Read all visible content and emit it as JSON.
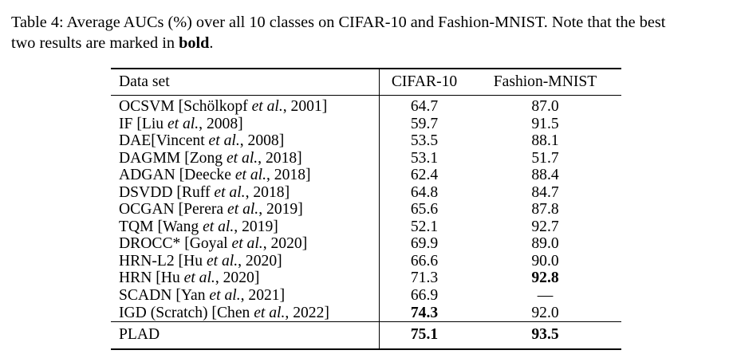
{
  "caption": {
    "line1": "Table 4: Average AUCs (%) over all 10 classes on CIFAR-10 and Fashion-MNIST. Note that the best",
    "line2_pre": "two results are marked in ",
    "line2_bold": "bold",
    "line2_post": "."
  },
  "table": {
    "columns": [
      "Data set",
      "CIFAR-10",
      "Fashion-MNIST"
    ],
    "rows": [
      {
        "method_pre": "OCSVM [Schölkopf ",
        "method_italic": "et al.",
        "method_post": ", 2001]",
        "cifar10": "64.7",
        "fashion_mnist": "87.0",
        "cifar10_bold": false,
        "fashion_mnist_bold": false,
        "is_summary": false
      },
      {
        "method_pre": "IF [Liu ",
        "method_italic": "et al.",
        "method_post": ", 2008]",
        "cifar10": "59.7",
        "fashion_mnist": "91.5",
        "cifar10_bold": false,
        "fashion_mnist_bold": false,
        "is_summary": false
      },
      {
        "method_pre": "DAE[Vincent ",
        "method_italic": "et al.",
        "method_post": ", 2008]",
        "cifar10": "53.5",
        "fashion_mnist": "88.1",
        "cifar10_bold": false,
        "fashion_mnist_bold": false,
        "is_summary": false
      },
      {
        "method_pre": "DAGMM [Zong ",
        "method_italic": "et al.",
        "method_post": ", 2018]",
        "cifar10": "53.1",
        "fashion_mnist": "51.7",
        "cifar10_bold": false,
        "fashion_mnist_bold": false,
        "is_summary": false
      },
      {
        "method_pre": "ADGAN [Deecke ",
        "method_italic": "et al.",
        "method_post": ", 2018]",
        "cifar10": "62.4",
        "fashion_mnist": "88.4",
        "cifar10_bold": false,
        "fashion_mnist_bold": false,
        "is_summary": false
      },
      {
        "method_pre": "DSVDD [Ruff ",
        "method_italic": "et al.",
        "method_post": ", 2018]",
        "cifar10": "64.8",
        "fashion_mnist": "84.7",
        "cifar10_bold": false,
        "fashion_mnist_bold": false,
        "is_summary": false
      },
      {
        "method_pre": "OCGAN [Perera ",
        "method_italic": "et al.",
        "method_post": ", 2019]",
        "cifar10": "65.6",
        "fashion_mnist": "87.8",
        "cifar10_bold": false,
        "fashion_mnist_bold": false,
        "is_summary": false
      },
      {
        "method_pre": "TQM [Wang ",
        "method_italic": "et al.",
        "method_post": ", 2019]",
        "cifar10": "52.1",
        "fashion_mnist": "92.7",
        "cifar10_bold": false,
        "fashion_mnist_bold": false,
        "is_summary": false
      },
      {
        "method_pre": "DROCC* [Goyal ",
        "method_italic": "et al.",
        "method_post": ", 2020]",
        "cifar10": "69.9",
        "fashion_mnist": "89.0",
        "cifar10_bold": false,
        "fashion_mnist_bold": false,
        "is_summary": false
      },
      {
        "method_pre": "HRN-L2 [Hu ",
        "method_italic": "et al.",
        "method_post": ", 2020]",
        "cifar10": "66.6",
        "fashion_mnist": "90.0",
        "cifar10_bold": false,
        "fashion_mnist_bold": false,
        "is_summary": false
      },
      {
        "method_pre": "HRN [Hu ",
        "method_italic": "et al.",
        "method_post": ", 2020]",
        "cifar10": "71.3",
        "fashion_mnist": "92.8",
        "cifar10_bold": false,
        "fashion_mnist_bold": true,
        "is_summary": false
      },
      {
        "method_pre": "SCADN [Yan ",
        "method_italic": "et al.",
        "method_post": ", 2021]",
        "cifar10": "66.9",
        "fashion_mnist": "—",
        "cifar10_bold": false,
        "fashion_mnist_bold": false,
        "is_summary": false
      },
      {
        "method_pre": "IGD (Scratch) [Chen ",
        "method_italic": "et al.",
        "method_post": ", 2022]",
        "cifar10": "74.3",
        "fashion_mnist": "92.0",
        "cifar10_bold": true,
        "fashion_mnist_bold": false,
        "is_summary": false
      },
      {
        "method_pre": "PLAD",
        "method_italic": "",
        "method_post": "",
        "cifar10": "75.1",
        "fashion_mnist": "93.5",
        "cifar10_bold": true,
        "fashion_mnist_bold": true,
        "is_summary": true
      }
    ]
  }
}
